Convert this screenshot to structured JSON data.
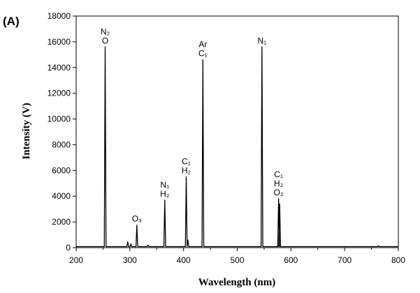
{
  "chart_data": {
    "type": "line",
    "panel_label": "(A)",
    "title": "",
    "xlabel": "Wavelength (nm)",
    "ylabel": "Intensity (V)",
    "xlim": [
      200,
      800
    ],
    "ylim": [
      0,
      18000
    ],
    "xticks": [
      200,
      300,
      400,
      500,
      600,
      700,
      800
    ],
    "yticks": [
      0,
      2000,
      4000,
      6000,
      8000,
      10000,
      12000,
      14000,
      16000,
      18000
    ],
    "grid": false,
    "legend": "none",
    "line_color": "#000000",
    "baseline": 80,
    "peaks": [
      {
        "x": 254,
        "y": 15600,
        "labels": [
          "N₂",
          "O"
        ]
      },
      {
        "x": 296,
        "y": 450,
        "labels": []
      },
      {
        "x": 302,
        "y": 300,
        "labels": []
      },
      {
        "x": 313,
        "y": 1750,
        "labels": [
          "O₃"
        ]
      },
      {
        "x": 334,
        "y": 200,
        "labels": []
      },
      {
        "x": 365,
        "y": 3700,
        "labels": [
          "N₁",
          "H₂"
        ]
      },
      {
        "x": 405,
        "y": 5500,
        "labels": [
          "C₁",
          "H₂"
        ]
      },
      {
        "x": 408,
        "y": 600,
        "labels": []
      },
      {
        "x": 436,
        "y": 14600,
        "labels": [
          "Ar",
          "C₁"
        ]
      },
      {
        "x": 546,
        "y": 15600,
        "labels": [
          "N₁"
        ]
      },
      {
        "x": 577,
        "y": 3800,
        "labels": [
          "C₁",
          "H₂",
          "O₂"
        ]
      },
      {
        "x": 579,
        "y": 3400,
        "labels": []
      },
      {
        "x": 763,
        "y": 150,
        "labels": []
      }
    ]
  }
}
